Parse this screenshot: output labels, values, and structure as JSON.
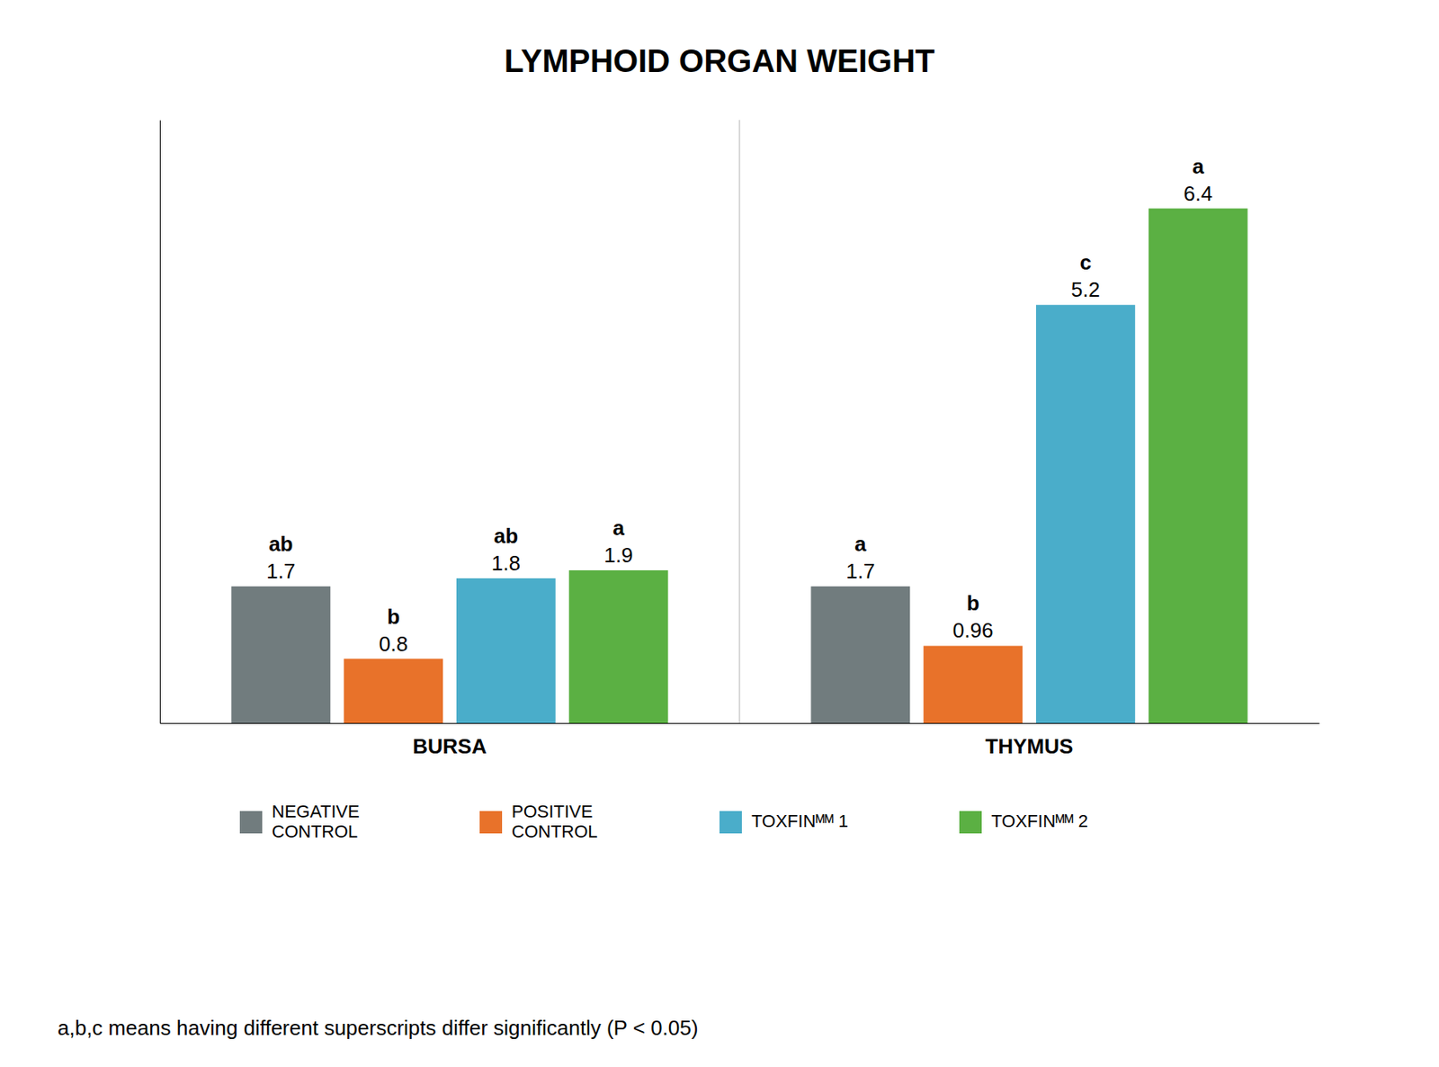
{
  "chart_data": {
    "type": "bar",
    "title": "LYMPHOID ORGAN WEIGHT",
    "categories": [
      "BURSA",
      "THYMUS"
    ],
    "series": [
      {
        "name": "NEGATIVE\nCONTROL",
        "color": "#717c7e",
        "values": [
          1.7,
          1.7
        ],
        "superscripts": [
          "ab",
          "a"
        ]
      },
      {
        "name": "POSITIVE\nCONTROL",
        "color": "#e8722a",
        "values": [
          0.8,
          0.96
        ],
        "superscripts": [
          "b",
          "b"
        ]
      },
      {
        "name": "TOXFINᴹᴹ 1",
        "color": "#4aadca",
        "values": [
          1.8,
          5.2
        ],
        "superscripts": [
          "ab",
          "c"
        ]
      },
      {
        "name": "TOXFINᴹᴹ 2",
        "color": "#5bb043",
        "values": [
          1.9,
          6.4
        ],
        "superscripts": [
          "a",
          "a"
        ]
      }
    ],
    "ylim": [
      0,
      7.5
    ],
    "tick_labels": "x",
    "data_labels": true,
    "grid": false,
    "footnote": "a,b,c means having different superscripts differ significantly (P < 0.05)"
  }
}
